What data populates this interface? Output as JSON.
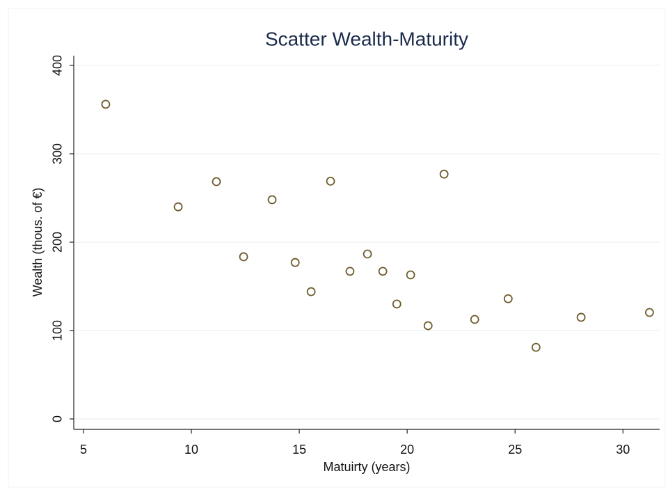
{
  "chart_data": {
    "type": "scatter",
    "title": "Scatter Wealth-Maturity",
    "x_label": "Matuirty (years)",
    "y_label": "Wealth (thous. of €)",
    "x": [
      6.03,
      9.39,
      11.16,
      12.42,
      13.74,
      14.81,
      15.55,
      16.45,
      17.35,
      18.16,
      18.87,
      19.52,
      20.16,
      20.97,
      21.71,
      23.13,
      24.68,
      25.97,
      28.06,
      31.23
    ],
    "values": [
      356,
      240,
      268.5,
      183.5,
      248,
      177,
      144,
      269,
      167,
      186.6,
      167,
      130,
      163,
      105.5,
      277,
      112.6,
      136,
      81,
      115,
      120.5
    ],
    "color": "#6e5c2c",
    "xlim": [
      4.55,
      31.7
    ],
    "ylim": [
      -11.8,
      411
    ],
    "xticks": [
      5,
      10,
      15,
      20,
      25,
      30
    ],
    "yticks": [
      0,
      100,
      200,
      300,
      400
    ],
    "grid": true
  }
}
